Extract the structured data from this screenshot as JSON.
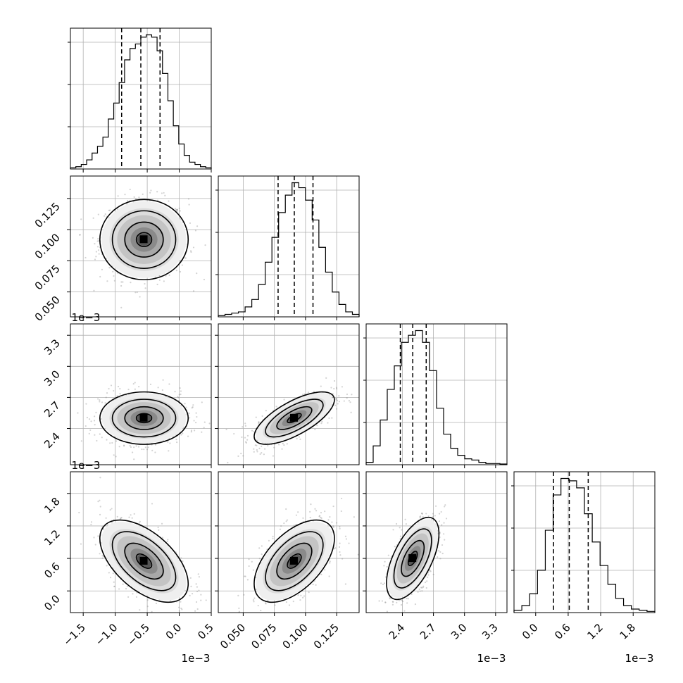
{
  "chart_data": {
    "type": "corner",
    "parameters": [
      {
        "id": "p1",
        "ticks": [
          -1.5,
          -1.0,
          -0.5,
          0.0,
          0.5
        ],
        "tick_labels": [
          "−1.5",
          "−1.0",
          "−0.5",
          "0.0",
          "0.5"
        ],
        "range": [
          -1.7,
          0.5
        ],
        "offset": "1e−3",
        "median": -0.6,
        "q16": -0.9,
        "q84": -0.3
      },
      {
        "id": "p2",
        "ticks": [
          0.05,
          0.075,
          0.1,
          0.125
        ],
        "tick_labels": [
          "0.050",
          "0.075",
          "0.100",
          "0.125"
        ],
        "range": [
          0.03,
          0.143
        ],
        "offset": "",
        "median": 0.091,
        "q16": 0.078,
        "q84": 0.106
      },
      {
        "id": "p3",
        "ticks": [
          2.4,
          2.7,
          3.0,
          3.3
        ],
        "tick_labels": [
          "2.4",
          "2.7",
          "3.0",
          "3.3"
        ],
        "range": [
          2.05,
          3.41
        ],
        "offset": "1e−3",
        "median": 2.5,
        "q16": 2.38,
        "q84": 2.63
      },
      {
        "id": "p4",
        "ticks": [
          0.0,
          0.6,
          1.2,
          1.8
        ],
        "tick_labels": [
          "0.0",
          "0.6",
          "1.2",
          "1.8"
        ],
        "range": [
          -0.4,
          2.2
        ],
        "offset": "1e−3",
        "median": 0.62,
        "q16": 0.33,
        "q84": 0.97
      }
    ],
    "marginals": [
      {
        "param": "p1",
        "bins": [
          -1.7,
          0.5
        ],
        "counts": [
          0.5,
          1,
          2,
          4,
          7,
          10,
          14,
          22,
          29,
          38,
          48,
          53,
          55,
          58,
          59,
          58,
          52,
          42,
          30,
          19,
          11,
          6,
          3,
          2,
          1,
          0.5
        ]
      },
      {
        "param": "p2",
        "bins": [
          0.03,
          0.143
        ],
        "counts": [
          0.5,
          1,
          1.5,
          2,
          4,
          7,
          13,
          22,
          32,
          42,
          49,
          54,
          52,
          47,
          39,
          28,
          18,
          10,
          5,
          2,
          1
        ]
      },
      {
        "param": "p3",
        "bins": [
          2.05,
          3.41
        ],
        "counts": [
          1,
          8,
          19,
          32,
          42,
          52,
          55,
          57,
          52,
          40,
          24,
          13,
          7,
          4,
          2.5,
          2,
          1,
          0.5,
          0.5,
          0.3
        ]
      },
      {
        "param": "p4",
        "bins": [
          -0.4,
          2.2
        ],
        "counts": [
          1,
          3,
          8,
          18,
          35,
          50,
          57,
          56,
          53,
          42,
          30,
          20,
          12,
          6,
          3,
          1.5,
          1,
          0.5
        ]
      }
    ],
    "pairs": [
      {
        "x": "p1",
        "y": "p2",
        "center": [
          -0.55,
          0.092
        ],
        "sd": [
          0.3,
          0.014
        ],
        "rho": 0.0
      },
      {
        "x": "p1",
        "y": "p3",
        "center": [
          -0.55,
          2.5
        ],
        "sd": [
          0.3,
          0.11
        ],
        "rho": 0.0
      },
      {
        "x": "p2",
        "y": "p3",
        "center": [
          0.091,
          2.5
        ],
        "sd": [
          0.014,
          0.11
        ],
        "rho": 0.7
      },
      {
        "x": "p1",
        "y": "p4",
        "center": [
          -0.55,
          0.55
        ],
        "sd": [
          0.3,
          0.33
        ],
        "rho": -0.55
      },
      {
        "x": "p2",
        "y": "p4",
        "center": [
          0.091,
          0.55
        ],
        "sd": [
          0.014,
          0.33
        ],
        "rho": 0.55
      },
      {
        "x": "p3",
        "y": "p4",
        "center": [
          2.5,
          0.6
        ],
        "sd": [
          0.11,
          0.33
        ],
        "rho": 0.6
      }
    ],
    "grid": true,
    "colors": {
      "contour": "#000000",
      "scatter": "#808080",
      "hist": "#000000",
      "grid": "#b0b0b0"
    }
  }
}
